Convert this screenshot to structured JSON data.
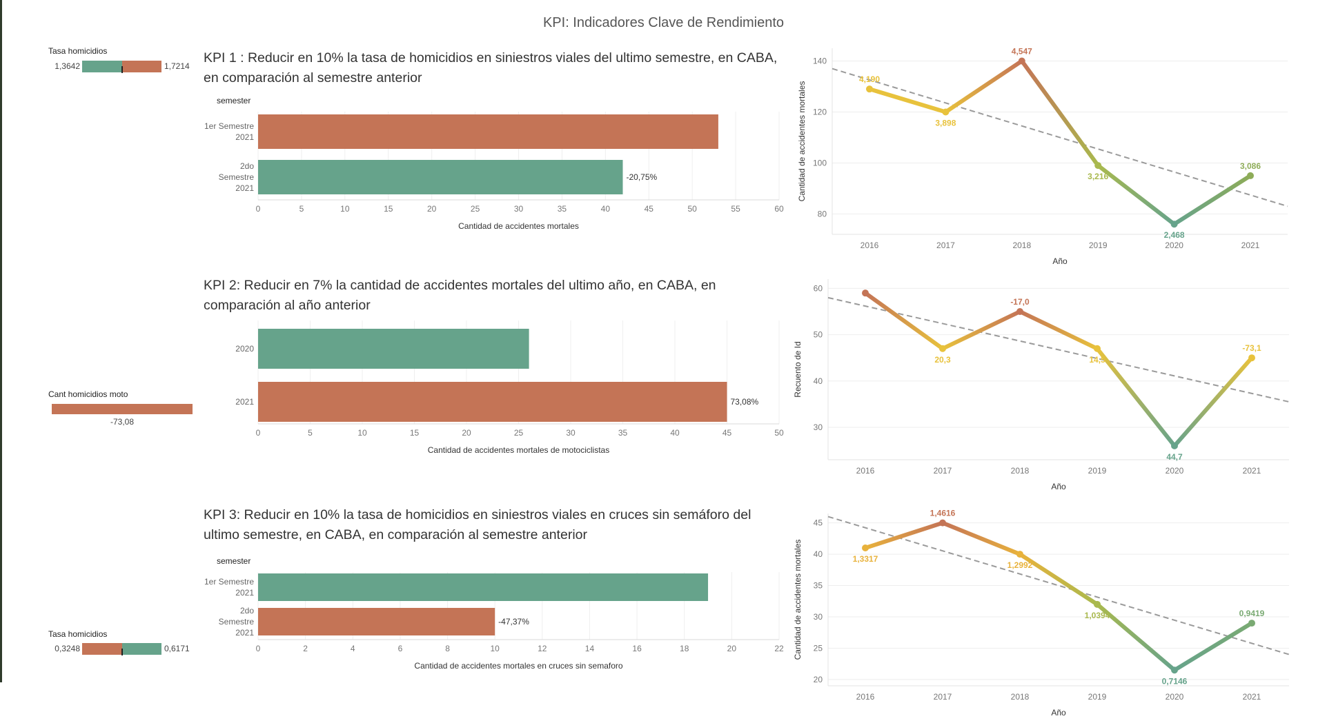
{
  "page_title": "KPI: Indicadores Clave de Rendimiento",
  "colors": {
    "green": "#66a38b",
    "orange": "#c47456",
    "yellow": "#e8c23c",
    "olive": "#a9b94e",
    "trend": "#9a9a9a"
  },
  "kpi1": {
    "title": "KPI 1 : Reducir en 10% la tasa de homicidios en siniestros viales del ultimo semestre, en CABA, en comparación al semestre anterior",
    "mini": {
      "label": "Tasa homicidios",
      "left_value": "1,3642",
      "right_value": "1,7214"
    }
  },
  "kpi2": {
    "title": "KPI 2: Reducir en 7% la cantidad de accidentes mortales del ultimo año, en CABA, en comparación al año anterior",
    "mini": {
      "label": "Cant homicidios moto",
      "value": "-73,08"
    }
  },
  "kpi3": {
    "title": "KPI 3: Reducir en 10% la tasa de homicidios en siniestros viales en cruces sin semáforo del ultimo semestre, en CABA, en comparación al semestre anterior",
    "mini": {
      "label": "Tasa homicidios",
      "left_value": "0,3248",
      "right_value": "0,6171"
    }
  },
  "chart_data": [
    {
      "type": "bar",
      "orientation": "horizontal",
      "row_header": "semester",
      "categories": [
        [
          "1er Semestre",
          "2021"
        ],
        [
          "2do",
          "Semestre",
          "2021"
        ]
      ],
      "values": [
        53,
        42
      ],
      "colors": [
        "#c47456",
        "#66a38b"
      ],
      "bar_labels": [
        "",
        "-20,75%"
      ],
      "xlabel": "Cantidad de accidentes mortales",
      "xlim": [
        0,
        60
      ],
      "xticks": [
        0,
        5,
        10,
        15,
        20,
        25,
        30,
        35,
        40,
        45,
        50,
        55,
        60
      ]
    },
    {
      "type": "line",
      "x": [
        2016,
        2017,
        2018,
        2019,
        2020,
        2021
      ],
      "values": [
        129,
        120,
        140,
        99,
        76,
        95
      ],
      "point_labels": [
        "4,190",
        "3,898",
        "4,547",
        "3,216",
        "2,468",
        "3,086"
      ],
      "colors": [
        "#e8c23c",
        "#e8c23c",
        "#c47456",
        "#a9b94e",
        "#66a38b",
        "#8eac58"
      ],
      "trend": [
        137,
        83
      ],
      "xlabel": "Año",
      "ylabel": "Cantidad de accidentes mortales",
      "ylim": [
        72,
        145
      ],
      "yticks": [
        80,
        100,
        120,
        140
      ],
      "grid": true
    },
    {
      "type": "bar",
      "orientation": "horizontal",
      "row_header": "",
      "categories": [
        [
          "2020"
        ],
        [
          "2021"
        ]
      ],
      "values": [
        26,
        45
      ],
      "colors": [
        "#66a38b",
        "#c47456"
      ],
      "bar_labels": [
        "",
        "73,08%"
      ],
      "xlabel": "Cantidad de accidentes mortales de motociclistas",
      "xlim": [
        0,
        50
      ],
      "xticks": [
        0,
        5,
        10,
        15,
        20,
        25,
        30,
        35,
        40,
        45,
        50
      ]
    },
    {
      "type": "line",
      "x": [
        2016,
        2017,
        2018,
        2019,
        2020,
        2021
      ],
      "values": [
        59,
        47,
        55,
        47,
        26,
        45
      ],
      "point_labels": [
        "",
        "20,3",
        "-17,0",
        "14,5",
        "44,7",
        "-73,1"
      ],
      "colors": [
        "#c47456",
        "#e8c23c",
        "#c47456",
        "#e8c23c",
        "#66a38b",
        "#e8c23c"
      ],
      "trend": [
        58,
        35.5
      ],
      "xlabel": "Año",
      "ylabel": "Recuento de Id",
      "ylim": [
        23,
        62
      ],
      "yticks": [
        30,
        40,
        50,
        60
      ],
      "grid": true
    },
    {
      "type": "bar",
      "orientation": "horizontal",
      "row_header": "semester",
      "categories": [
        [
          "1er Semestre",
          "2021"
        ],
        [
          "2do",
          "Semestre",
          "2021"
        ]
      ],
      "values": [
        19,
        10
      ],
      "colors": [
        "#66a38b",
        "#c47456"
      ],
      "bar_labels": [
        "",
        "-47,37%"
      ],
      "xlabel": "Cantidad de accidentes mortales en cruces sin semaforo",
      "xlim": [
        0,
        22
      ],
      "xticks": [
        0,
        2,
        4,
        6,
        8,
        10,
        12,
        14,
        16,
        18,
        20,
        22
      ]
    },
    {
      "type": "line",
      "x": [
        2016,
        2017,
        2018,
        2019,
        2020,
        2021
      ],
      "values": [
        41,
        45,
        40,
        32,
        21.5,
        29
      ],
      "point_labels": [
        "1,3317",
        "1,4616",
        "1,2992",
        "1,0394",
        "0,7146",
        "0,9419"
      ],
      "colors": [
        "#e8b23c",
        "#c47456",
        "#e8b23c",
        "#a9b94e",
        "#66a38b",
        "#7aaa73"
      ],
      "trend": [
        46,
        24
      ],
      "xlabel": "Año",
      "ylabel": "Cantidad de accidentes mortales",
      "ylim": [
        19,
        46.5
      ],
      "yticks": [
        20,
        25,
        30,
        35,
        40,
        45
      ],
      "grid": true
    }
  ]
}
